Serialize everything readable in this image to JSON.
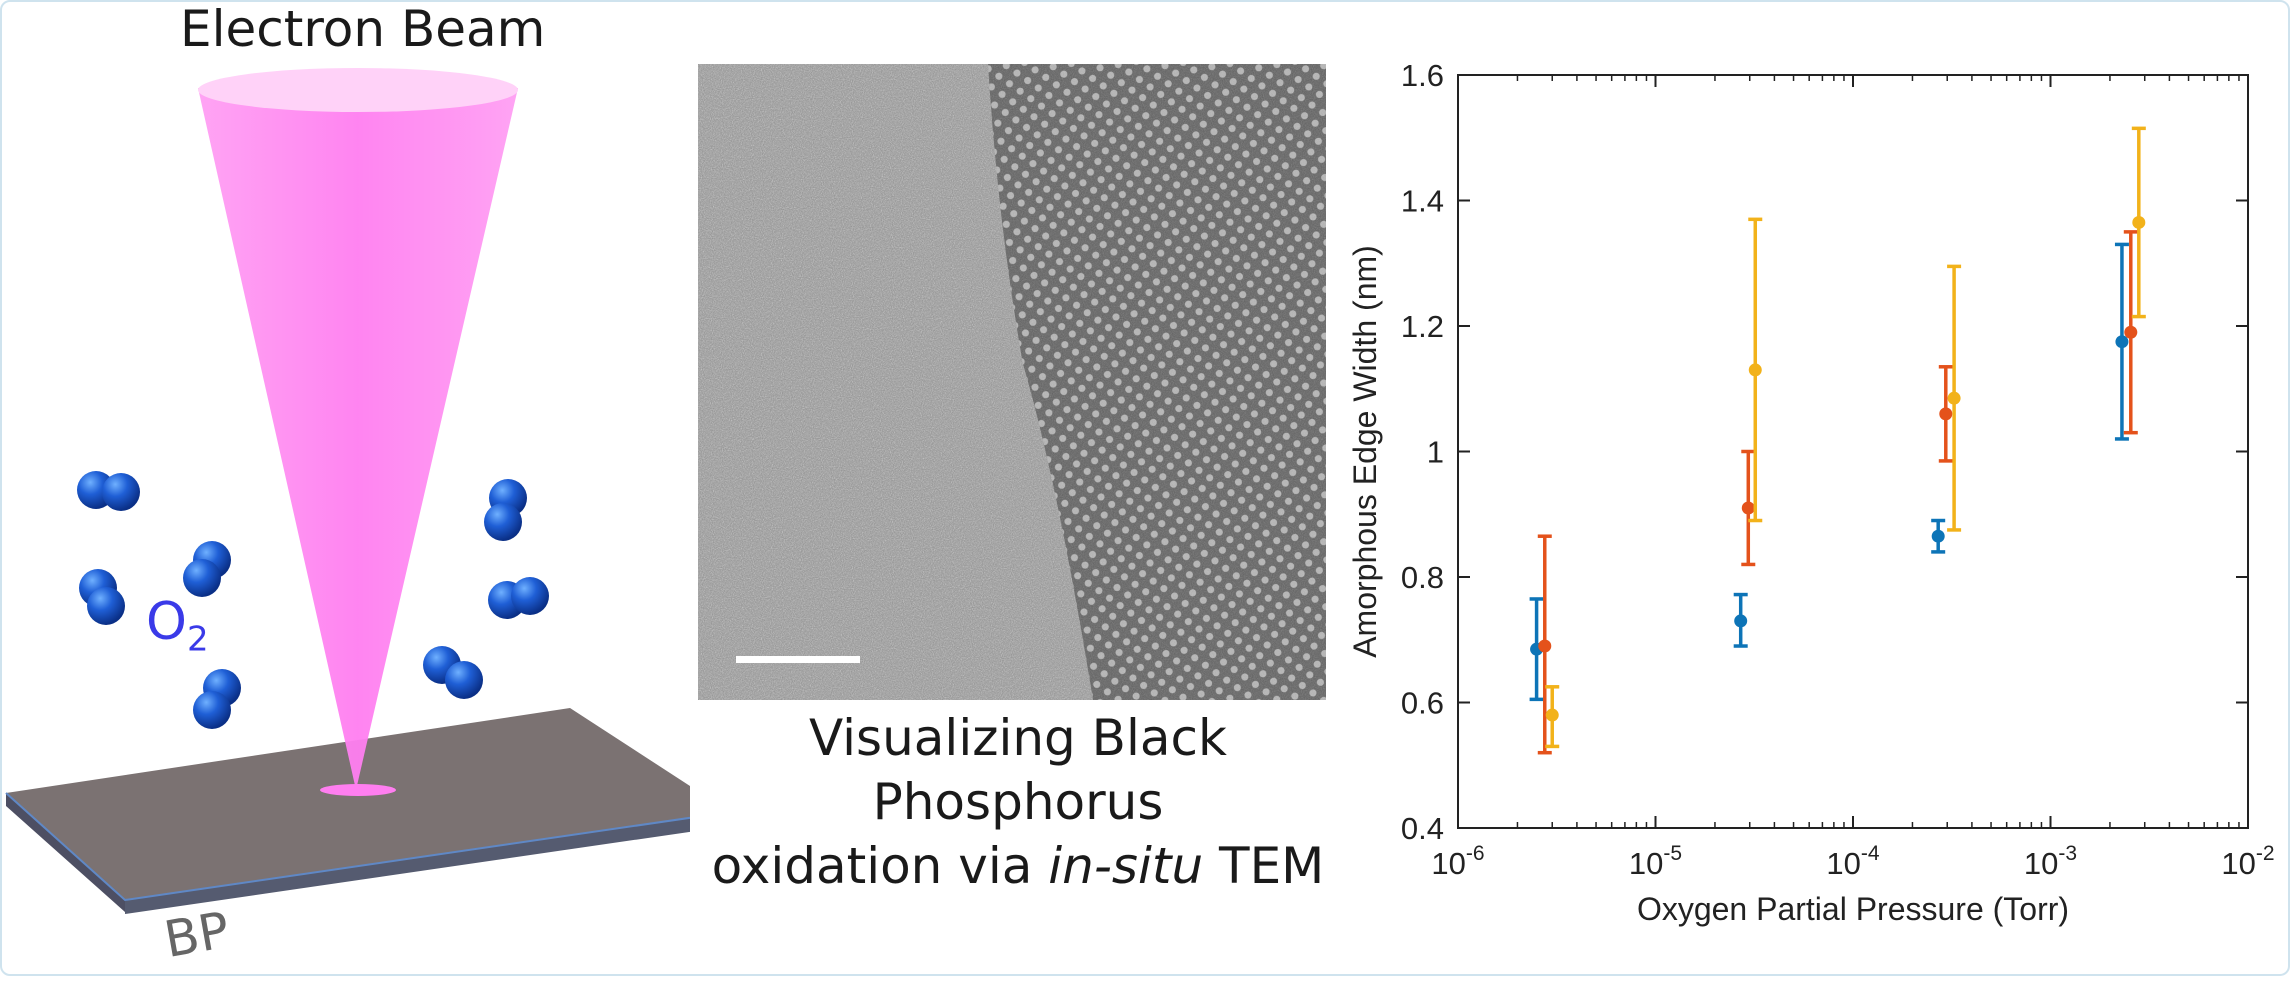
{
  "schematic": {
    "beam_label": "Electron Beam",
    "gas_label_main": "O",
    "gas_label_sub": "2",
    "substrate_label": "BP"
  },
  "tem": {
    "caption_line1": "Visualizing Black",
    "caption_line2": "Phosphorus",
    "caption_line3a": "oxidation via ",
    "caption_line3b": "in-situ",
    "caption_line3c": " TEM"
  },
  "colors": {
    "beam": "#ff8ef2",
    "oxygen": "#1f5fd6",
    "substrate_top": "#7b7272",
    "substrate_edge": "#4a6fa0",
    "series1": "#0d74b7",
    "series2": "#e4521b",
    "series3": "#f2b21a"
  },
  "chart_data": {
    "type": "scatter",
    "xlabel": "Oxygen Partial Pressure (Torr)",
    "ylabel": "Amorphous Edge Width (nm)",
    "x_scale": "log",
    "xlim": [
      1e-06,
      0.01
    ],
    "ylim": [
      0.4,
      1.6
    ],
    "x_ticks": [
      {
        "base": "10",
        "exp": "-6"
      },
      {
        "base": "10",
        "exp": "-5"
      },
      {
        "base": "10",
        "exp": "-4"
      },
      {
        "base": "10",
        "exp": "-3"
      },
      {
        "base": "10",
        "exp": "-2"
      }
    ],
    "y_ticks": [
      "0.4",
      "0.6",
      "0.8",
      "1",
      "1.2",
      "1.4",
      "1.6"
    ],
    "grid": false,
    "series": [
      {
        "color": "#0d74b7",
        "points": [
          {
            "x": 2.5e-06,
            "y": 0.685,
            "lo": 0.605,
            "hi": 0.765
          },
          {
            "x": 2.7e-05,
            "y": 0.73,
            "lo": 0.69,
            "hi": 0.772
          },
          {
            "x": 0.00027,
            "y": 0.865,
            "lo": 0.84,
            "hi": 0.89
          },
          {
            "x": 0.0023,
            "y": 1.175,
            "lo": 1.02,
            "hi": 1.33
          }
        ]
      },
      {
        "color": "#e4521b",
        "points": [
          {
            "x": 2.75e-06,
            "y": 0.69,
            "lo": 0.52,
            "hi": 0.865
          },
          {
            "x": 2.95e-05,
            "y": 0.91,
            "lo": 0.82,
            "hi": 1.0
          },
          {
            "x": 0.000295,
            "y": 1.06,
            "lo": 0.985,
            "hi": 1.135
          },
          {
            "x": 0.00255,
            "y": 1.19,
            "lo": 1.03,
            "hi": 1.35
          }
        ]
      },
      {
        "color": "#f2b21a",
        "points": [
          {
            "x": 3e-06,
            "y": 0.58,
            "lo": 0.53,
            "hi": 0.625
          },
          {
            "x": 3.2e-05,
            "y": 1.13,
            "lo": 0.89,
            "hi": 1.37
          },
          {
            "x": 0.000325,
            "y": 1.085,
            "lo": 0.875,
            "hi": 1.295
          },
          {
            "x": 0.0028,
            "y": 1.365,
            "lo": 1.215,
            "hi": 1.515
          }
        ]
      }
    ]
  }
}
